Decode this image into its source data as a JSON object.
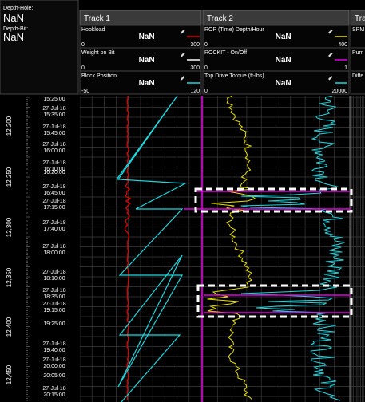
{
  "left_panel": {
    "depth_hole_label": "Depth-Hole:",
    "depth_hole_value": "NaN",
    "depth_bit_label": "Depth-Bit:",
    "depth_bit_value": "NaN"
  },
  "tracks": [
    {
      "title": "Track 1",
      "channels": [
        {
          "name": "Hookload",
          "value": "NaN",
          "min": 0,
          "max": 300,
          "color": "#e00000"
        },
        {
          "name": "Weight on Bit",
          "value": "NaN",
          "min": 0,
          "max": 300,
          "color": "#ffffff"
        },
        {
          "name": "Block Position",
          "value": "NaN",
          "min": -50,
          "max": 120,
          "color": "#20d8e0"
        }
      ]
    },
    {
      "title": "Track 2",
      "channels": [
        {
          "name": "ROP (Time) Depth/Hour",
          "value": "NaN",
          "min": 0,
          "max": 400,
          "color": "#e8e000"
        },
        {
          "name": "ROCKIT - On/Off",
          "value": "NaN",
          "min": 0,
          "max": 1,
          "color": "#e000e0"
        },
        {
          "name": "Top Drive Torque (ft-lbs)",
          "value": "NaN",
          "min": 0,
          "max": 20000,
          "color": "#20d8e0"
        }
      ]
    },
    {
      "title": "Tra",
      "channels": [
        {
          "name": "SPM"
        },
        {
          "name": "Pum"
        },
        {
          "name": "Diffe"
        }
      ]
    }
  ],
  "depth_labels": [
    "12,200",
    "12,250",
    "12,300",
    "12,350",
    "12,400",
    "12,450"
  ],
  "time_labels": [
    {
      "time": "15:25:00"
    },
    {
      "date": "27-Jul-18",
      "time": "15:35:00"
    },
    {
      "date": "27-Jul-18",
      "time": "15:45:00"
    },
    {
      "date": "27-Jul-18",
      "time": "16:00:00"
    },
    {
      "date": "27-Jul-18",
      "time": "16:10:00"
    },
    {
      "time": "16:20:00"
    },
    {
      "date": "27-Jul-18",
      "time": "16:45:00"
    },
    {
      "date": "27-Jul-18",
      "time": "17:15:00"
    },
    {
      "date": "27-Jul-18",
      "time": "17:40:00"
    },
    {
      "date": "27-Jul-18",
      "time": "18:00:00"
    },
    {
      "date": "27-Jul-18",
      "time": "18:10:00"
    },
    {
      "date": "27-Jul-18",
      "time": "18:35:00"
    },
    {
      "date": "27-Jul-18",
      "time": "19:15:00"
    },
    {
      "time": "19:25:00"
    },
    {
      "date": "27-Jul-18",
      "time": "19:40:00"
    },
    {
      "date": "27-Jul-18",
      "time": "20:00:00"
    },
    {
      "time": "20:05:00"
    },
    {
      "date": "27-Jul-18",
      "time": "20:15:00"
    }
  ]
}
